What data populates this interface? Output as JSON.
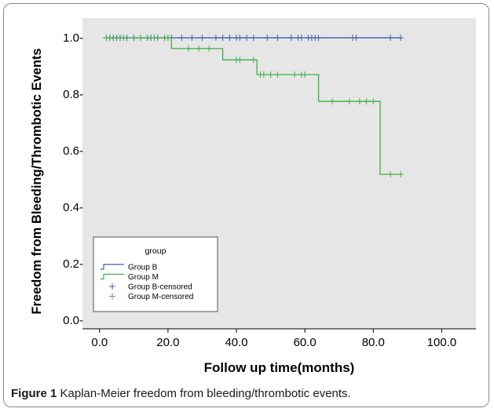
{
  "figure": {
    "label": "Figure 1",
    "caption": "Kaplan-Meier freedom from bleeding/thrombotic events."
  },
  "chart_data": {
    "type": "line",
    "subtype": "kaplan-meier",
    "xlabel": "Follow up time(months)",
    "ylabel": "Freedom from Bleeding/Thrombotic Events",
    "xlim": [
      -5,
      110
    ],
    "ylim": [
      -0.03,
      1.07
    ],
    "xticks": [
      0,
      20,
      40,
      60,
      80,
      100
    ],
    "xtick_labels": [
      "0.0",
      "20.0",
      "40.0",
      "60.0",
      "80.0",
      "100.0"
    ],
    "yticks": [
      0,
      0.2,
      0.4,
      0.6,
      0.8,
      1.0
    ],
    "ytick_labels": [
      "0.0-",
      "0.2-",
      "0.4-",
      "0.6-",
      "0.8-",
      "1.0-"
    ],
    "plot_background": "#e6e6e6",
    "legend": {
      "title": "group",
      "placement": "lower-left",
      "entries": [
        "Group B",
        "Group M",
        "Group B-censored",
        "Group M-censored"
      ]
    },
    "series": [
      {
        "name": "Group B",
        "color": "#3b5fb0",
        "steps": [
          [
            2,
            1.0
          ],
          [
            88,
            1.0
          ]
        ],
        "censored": [
          [
            2,
            1.0
          ],
          [
            3,
            1.0
          ],
          [
            4,
            1.0
          ],
          [
            5,
            1.0
          ],
          [
            6,
            1.0
          ],
          [
            8,
            1.0
          ],
          [
            10,
            1.0
          ],
          [
            12,
            1.0
          ],
          [
            14,
            1.0
          ],
          [
            15,
            1.0
          ],
          [
            17,
            1.0
          ],
          [
            19,
            1.0
          ],
          [
            20,
            1.0
          ],
          [
            21,
            1.0
          ],
          [
            24,
            1.0
          ],
          [
            27,
            1.0
          ],
          [
            30,
            1.0
          ],
          [
            34,
            1.0
          ],
          [
            36,
            1.0
          ],
          [
            38,
            1.0
          ],
          [
            40,
            1.0
          ],
          [
            41,
            1.0
          ],
          [
            43,
            1.0
          ],
          [
            45,
            1.0
          ],
          [
            49,
            1.0
          ],
          [
            52,
            1.0
          ],
          [
            56,
            1.0
          ],
          [
            58,
            1.0
          ],
          [
            59,
            1.0
          ],
          [
            61,
            1.0
          ],
          [
            62,
            1.0
          ],
          [
            63,
            1.0
          ],
          [
            64,
            1.0
          ],
          [
            74,
            1.0
          ],
          [
            75,
            1.0
          ],
          [
            85,
            1.0
          ],
          [
            88,
            1.0
          ]
        ]
      },
      {
        "name": "Group M",
        "color": "#3cb043",
        "steps": [
          [
            2,
            1.0
          ],
          [
            21,
            1.0
          ],
          [
            21,
            0.962
          ],
          [
            36,
            0.962
          ],
          [
            36,
            0.922
          ],
          [
            46,
            0.922
          ],
          [
            46,
            0.87
          ],
          [
            64,
            0.87
          ],
          [
            64,
            0.775
          ],
          [
            82,
            0.775
          ],
          [
            82,
            0.517
          ],
          [
            88,
            0.517
          ]
        ],
        "censored": [
          [
            2,
            1.0
          ],
          [
            3,
            1.0
          ],
          [
            4,
            1.0
          ],
          [
            7,
            1.0
          ],
          [
            12,
            1.0
          ],
          [
            16,
            1.0
          ],
          [
            19,
            1.0
          ],
          [
            20,
            1.0
          ],
          [
            26,
            0.962
          ],
          [
            29,
            0.962
          ],
          [
            32,
            0.962
          ],
          [
            40,
            0.922
          ],
          [
            41,
            0.922
          ],
          [
            45,
            0.922
          ],
          [
            47,
            0.87
          ],
          [
            48,
            0.87
          ],
          [
            50,
            0.87
          ],
          [
            52,
            0.87
          ],
          [
            57,
            0.87
          ],
          [
            59,
            0.87
          ],
          [
            60,
            0.87
          ],
          [
            68,
            0.775
          ],
          [
            73,
            0.775
          ],
          [
            76,
            0.775
          ],
          [
            78,
            0.775
          ],
          [
            80,
            0.775
          ],
          [
            85,
            0.517
          ],
          [
            88,
            0.517
          ]
        ]
      }
    ]
  }
}
